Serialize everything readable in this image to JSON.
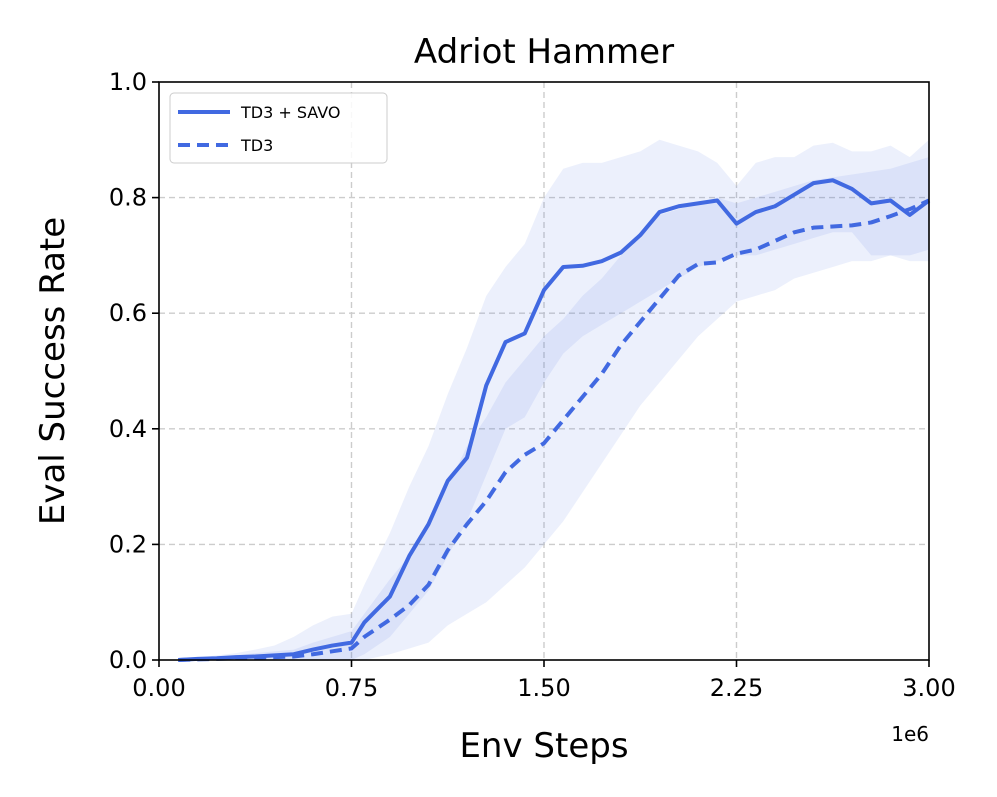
{
  "chart_data": {
    "type": "line",
    "title": "Adriot Hammer",
    "xlabel": "Env Steps",
    "ylabel": "Eval Success Rate",
    "x_offset_label": "1e6",
    "xlim": [
      0,
      3.0
    ],
    "ylim": [
      0,
      1.0
    ],
    "xticks": [
      0.0,
      0.75,
      1.5,
      2.25,
      3.0
    ],
    "xtick_labels": [
      "0.00",
      "0.75",
      "1.50",
      "2.25",
      "3.00"
    ],
    "yticks": [
      0.0,
      0.2,
      0.4,
      0.6,
      0.8,
      1.0
    ],
    "ytick_labels": [
      "0.0",
      "0.2",
      "0.4",
      "0.6",
      "0.8",
      "1.0"
    ],
    "grid": true,
    "legend_position": "upper-left",
    "color": "#4169E1",
    "x": [
      0.075,
      0.15,
      0.225,
      0.3,
      0.375,
      0.45,
      0.525,
      0.6,
      0.675,
      0.75,
      0.8,
      0.9,
      0.975,
      1.05,
      1.125,
      1.2,
      1.275,
      1.35,
      1.425,
      1.5,
      1.575,
      1.65,
      1.725,
      1.8,
      1.875,
      1.95,
      2.025,
      2.1,
      2.175,
      2.25,
      2.325,
      2.4,
      2.475,
      2.55,
      2.625,
      2.7,
      2.775,
      2.85,
      2.925,
      3.0
    ],
    "series": [
      {
        "name": "TD3 + SAVO",
        "line_style": "solid",
        "values": [
          0.0,
          0.002,
          0.003,
          0.005,
          0.006,
          0.008,
          0.01,
          0.018,
          0.025,
          0.03,
          0.065,
          0.11,
          0.18,
          0.235,
          0.31,
          0.35,
          0.475,
          0.55,
          0.565,
          0.64,
          0.68,
          0.682,
          0.69,
          0.705,
          0.735,
          0.775,
          0.785,
          0.79,
          0.795,
          0.755,
          0.775,
          0.785,
          0.805,
          0.825,
          0.83,
          0.815,
          0.79,
          0.795,
          0.77,
          0.795
        ],
        "upper": [
          0.0,
          0.004,
          0.008,
          0.012,
          0.018,
          0.025,
          0.04,
          0.06,
          0.075,
          0.08,
          0.13,
          0.22,
          0.3,
          0.37,
          0.46,
          0.54,
          0.63,
          0.68,
          0.72,
          0.8,
          0.85,
          0.86,
          0.86,
          0.87,
          0.88,
          0.9,
          0.89,
          0.88,
          0.86,
          0.82,
          0.86,
          0.87,
          0.87,
          0.89,
          0.895,
          0.88,
          0.88,
          0.89,
          0.87,
          0.9
        ],
        "lower": [
          0.0,
          0.0,
          0.0,
          0.0,
          0.0,
          0.0,
          0.0,
          0.0,
          0.0,
          0.0,
          0.01,
          0.04,
          0.08,
          0.12,
          0.18,
          0.24,
          0.32,
          0.4,
          0.42,
          0.48,
          0.53,
          0.56,
          0.58,
          0.6,
          0.62,
          0.64,
          0.66,
          0.68,
          0.69,
          0.7,
          0.7,
          0.71,
          0.72,
          0.73,
          0.74,
          0.74,
          0.7,
          0.7,
          0.69,
          0.69
        ]
      },
      {
        "name": "TD3",
        "line_style": "dashed",
        "values": [
          0.0,
          0.001,
          0.002,
          0.003,
          0.004,
          0.005,
          0.006,
          0.01,
          0.015,
          0.02,
          0.04,
          0.07,
          0.095,
          0.13,
          0.19,
          0.235,
          0.275,
          0.325,
          0.355,
          0.375,
          0.415,
          0.455,
          0.495,
          0.545,
          0.585,
          0.625,
          0.665,
          0.685,
          0.688,
          0.703,
          0.71,
          0.725,
          0.74,
          0.748,
          0.75,
          0.752,
          0.757,
          0.768,
          0.78,
          0.795
        ],
        "upper": [
          0.0,
          0.003,
          0.005,
          0.008,
          0.012,
          0.015,
          0.018,
          0.03,
          0.04,
          0.05,
          0.08,
          0.14,
          0.18,
          0.24,
          0.3,
          0.37,
          0.42,
          0.48,
          0.52,
          0.56,
          0.59,
          0.63,
          0.66,
          0.7,
          0.74,
          0.77,
          0.78,
          0.79,
          0.8,
          0.79,
          0.8,
          0.81,
          0.82,
          0.83,
          0.835,
          0.84,
          0.845,
          0.85,
          0.86,
          0.87
        ],
        "lower": [
          0.0,
          0.0,
          0.0,
          0.0,
          0.0,
          0.0,
          0.0,
          0.0,
          0.0,
          0.0,
          0.0,
          0.01,
          0.02,
          0.03,
          0.06,
          0.08,
          0.1,
          0.13,
          0.16,
          0.2,
          0.24,
          0.29,
          0.34,
          0.39,
          0.44,
          0.48,
          0.52,
          0.56,
          0.59,
          0.62,
          0.63,
          0.64,
          0.66,
          0.67,
          0.68,
          0.69,
          0.69,
          0.7,
          0.7,
          0.71
        ]
      }
    ]
  }
}
